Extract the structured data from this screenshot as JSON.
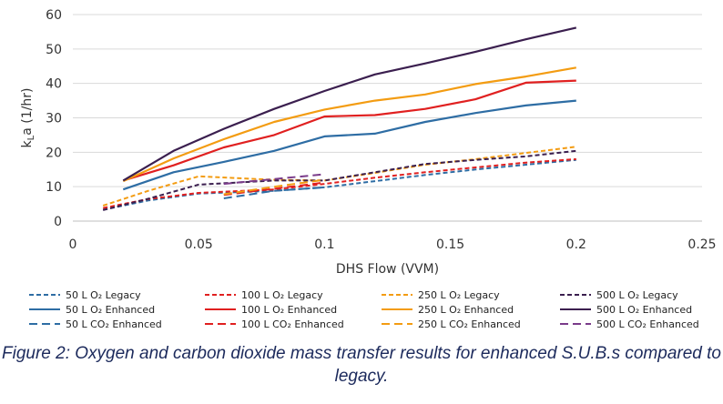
{
  "chart_data": {
    "type": "line",
    "title": "",
    "xlabel": "DHS Flow (VVM)",
    "ylabel": "kLa (1/hr)",
    "ylabel_main": "k",
    "ylabel_sub": "L",
    "ylabel_rest": "a (1/hr)",
    "xlim": [
      0,
      0.25
    ],
    "ylim": [
      0,
      60
    ],
    "x_ticks": [
      0,
      0.05,
      0.1,
      0.15,
      0.2,
      0.25
    ],
    "x_tick_labels": [
      "0",
      "0.05",
      "0.1",
      "0.15",
      "0.2",
      "0.25"
    ],
    "y_ticks": [
      0,
      10,
      20,
      30,
      40,
      50,
      60
    ],
    "y_tick_labels": [
      "0",
      "10",
      "20",
      "30",
      "40",
      "50",
      "60"
    ],
    "grid": "horizontal",
    "legend_position": "bottom",
    "series": [
      {
        "name": "50 L O₂ Legacy",
        "color": "#2e6da4",
        "style": "dashed-short",
        "x": [
          0.012,
          0.03,
          0.05,
          0.08,
          0.1,
          0.12,
          0.14,
          0.16,
          0.18,
          0.2
        ],
        "y": [
          3.3,
          6.0,
          8.0,
          8.8,
          9.8,
          11.6,
          13.4,
          15.0,
          16.4,
          17.8
        ]
      },
      {
        "name": "100 L O₂ Legacy",
        "color": "#e02020",
        "style": "dashed-short",
        "x": [
          0.012,
          0.03,
          0.05,
          0.08,
          0.1,
          0.12,
          0.14,
          0.16,
          0.18,
          0.2
        ],
        "y": [
          3.8,
          6.4,
          8.2,
          9.2,
          10.8,
          12.6,
          14.2,
          15.6,
          17.0,
          18.0
        ]
      },
      {
        "name": "250 L O₂ Legacy",
        "color": "#f39c12",
        "style": "dashed-short",
        "x": [
          0.012,
          0.03,
          0.05,
          0.08,
          0.1,
          0.12,
          0.14,
          0.16,
          0.18,
          0.2
        ],
        "y": [
          4.5,
          8.8,
          13.0,
          12.0,
          11.8,
          14.0,
          16.4,
          18.0,
          19.8,
          21.6
        ]
      },
      {
        "name": "500 L O₂ Legacy",
        "color": "#3b1f4f",
        "style": "dashed-short",
        "x": [
          0.012,
          0.03,
          0.05,
          0.08,
          0.1,
          0.12,
          0.14,
          0.16,
          0.18,
          0.2
        ],
        "y": [
          3.2,
          6.5,
          10.6,
          11.8,
          11.8,
          14.2,
          16.6,
          17.8,
          18.8,
          20.4
        ]
      },
      {
        "name": "50 L O₂ Enhanced",
        "color": "#2e6da4",
        "style": "solid",
        "x": [
          0.02,
          0.04,
          0.06,
          0.08,
          0.1,
          0.12,
          0.14,
          0.16,
          0.18,
          0.2
        ],
        "y": [
          9.2,
          14.2,
          17.2,
          20.4,
          24.6,
          25.4,
          28.8,
          31.4,
          33.6,
          35.0
        ]
      },
      {
        "name": "100 L O₂ Enhanced",
        "color": "#e02020",
        "style": "solid",
        "x": [
          0.02,
          0.04,
          0.06,
          0.08,
          0.1,
          0.12,
          0.14,
          0.16,
          0.18,
          0.2
        ],
        "y": [
          11.8,
          16.2,
          21.4,
          25.0,
          30.4,
          30.8,
          32.6,
          35.4,
          40.2,
          40.8
        ]
      },
      {
        "name": "250 L O₂ Enhanced",
        "color": "#f39c12",
        "style": "solid",
        "x": [
          0.02,
          0.04,
          0.06,
          0.08,
          0.1,
          0.12,
          0.14,
          0.16,
          0.18,
          0.2
        ],
        "y": [
          11.6,
          18.2,
          23.8,
          28.8,
          32.4,
          35.0,
          36.8,
          39.8,
          42.0,
          44.6
        ]
      },
      {
        "name": "500 L O₂ Enhanced",
        "color": "#3b1f4f",
        "style": "solid",
        "x": [
          0.02,
          0.04,
          0.06,
          0.08,
          0.1,
          0.12,
          0.14,
          0.16,
          0.18,
          0.2
        ],
        "y": [
          11.8,
          20.4,
          26.8,
          32.6,
          37.8,
          42.6,
          45.8,
          49.2,
          52.8,
          56.2
        ]
      },
      {
        "name": "50 L CO₂ Enhanced",
        "color": "#2e6da4",
        "style": "dashed-long",
        "x": [
          0.06,
          0.08,
          0.1
        ],
        "y": [
          6.6,
          8.8,
          9.8
        ]
      },
      {
        "name": "100 L CO₂ Enhanced",
        "color": "#e02020",
        "style": "dashed-long",
        "x": [
          0.06,
          0.08,
          0.1
        ],
        "y": [
          7.6,
          9.4,
          11.2
        ]
      },
      {
        "name": "250 L CO₂ Enhanced",
        "color": "#f39c12",
        "style": "dashed-long",
        "x": [
          0.06,
          0.08,
          0.1
        ],
        "y": [
          7.8,
          10.0,
          12.0
        ]
      },
      {
        "name": "500 L CO₂ Enhanced",
        "color": "#7a3b8a",
        "style": "dashed-long",
        "x": [
          0.06,
          0.08,
          0.1
        ],
        "y": [
          10.8,
          12.2,
          13.6
        ]
      }
    ]
  },
  "caption": {
    "line1": "Figure 2: Oxygen and carbon dioxide mass transfer results for enhanced S.U.B.s compared to",
    "line2": "legacy."
  }
}
